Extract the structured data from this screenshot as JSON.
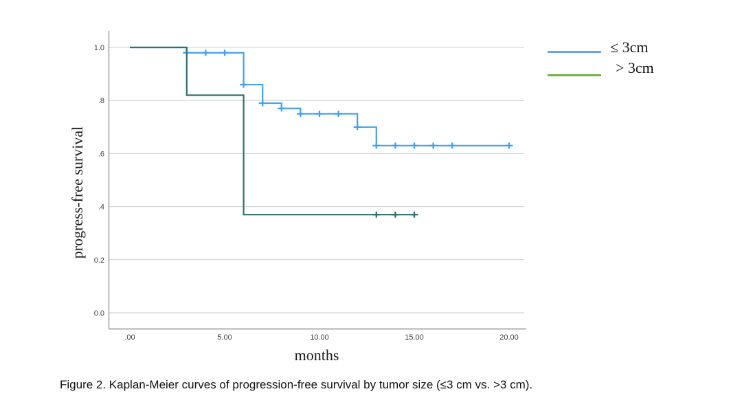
{
  "figure": {
    "caption": "Figure 2. Kaplan-Meier curves of progression-free survival by tumor size (≤3 cm vs. >3 cm)."
  },
  "chart_data": {
    "type": "line",
    "subtype": "kaplan_meier_step_function",
    "title": "",
    "xlabel": "months",
    "ylabel": "progress-free survival",
    "xlim": [
      0,
      21
    ],
    "ylim": [
      0,
      1.05
    ],
    "grid": "horizontal",
    "legend_position": "outside-top-right",
    "x_ticks": [
      {
        "value": 0,
        "label": ".00"
      },
      {
        "value": 5,
        "label": "5.00"
      },
      {
        "value": 10,
        "label": "10.00"
      },
      {
        "value": 15,
        "label": "15.00"
      },
      {
        "value": 20,
        "label": "20.00"
      }
    ],
    "y_ticks": [
      {
        "value": 0.0,
        "label": "0.0"
      },
      {
        "value": 0.2,
        "label": "0.2"
      },
      {
        "value": 0.4,
        "label": ".4"
      },
      {
        "value": 0.6,
        "label": ".6"
      },
      {
        "value": 0.8,
        "label": ".8"
      },
      {
        "value": 1.0,
        "label": "1.0"
      }
    ],
    "colors": {
      "gridline": "#cbcbcb",
      "axis": "#909090",
      "tick_text": "#3e3e3e"
    },
    "series": [
      {
        "name": "≤ 3cm",
        "key": "le-3cm",
        "curve_color": "#44a1e8",
        "legend_color": "#6ba6e2",
        "start": [
          0,
          1.0
        ],
        "steps": [
          [
            3,
            0.98
          ],
          [
            6,
            0.86
          ],
          [
            7,
            0.79
          ],
          [
            8,
            0.77
          ],
          [
            9,
            0.75
          ],
          [
            12,
            0.7
          ],
          [
            13,
            0.63
          ]
        ],
        "end_x": 20,
        "censored": [
          [
            3,
            0.98
          ],
          [
            4,
            0.98
          ],
          [
            5,
            0.98
          ],
          [
            6,
            0.86
          ],
          [
            7,
            0.79
          ],
          [
            8,
            0.77
          ],
          [
            9,
            0.75
          ],
          [
            10,
            0.75
          ],
          [
            11,
            0.75
          ],
          [
            12,
            0.7
          ],
          [
            13,
            0.63
          ],
          [
            14,
            0.63
          ],
          [
            15,
            0.63
          ],
          [
            16,
            0.63
          ],
          [
            17,
            0.63
          ],
          [
            20,
            0.63
          ]
        ]
      },
      {
        "name": "> 3cm",
        "key": "gt-3cm",
        "curve_color": "#2f6f6f",
        "legend_color": "#6fb342",
        "start": [
          0,
          1.0
        ],
        "steps": [
          [
            3,
            0.82
          ],
          [
            6,
            0.37
          ]
        ],
        "end_x": 15,
        "censored": [
          [
            13,
            0.37
          ],
          [
            14,
            0.37
          ],
          [
            15,
            0.37
          ]
        ]
      }
    ]
  }
}
